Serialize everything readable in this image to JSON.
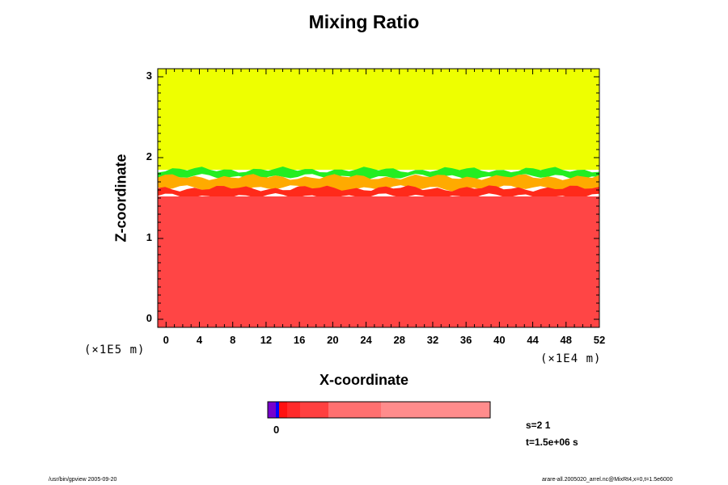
{
  "chart_data": {
    "type": "heatmap",
    "title": "Mixing Ratio",
    "xlabel": "X-coordinate",
    "ylabel": "Z-coordinate",
    "x_unit": "(×1E4 m)",
    "y_unit": "(×1E5 m)",
    "xlim": [
      -1,
      52
    ],
    "ylim": [
      -0.1,
      3.1
    ],
    "x_ticks": [
      "0",
      "4",
      "8",
      "12",
      "16",
      "20",
      "24",
      "28",
      "32",
      "36",
      "40",
      "44",
      "48",
      "52"
    ],
    "y_ticks": [
      "0",
      "1",
      "2",
      "3"
    ],
    "grid": false,
    "regions": [
      {
        "name": "upper",
        "z_from": 1.85,
        "z_to": 3.1,
        "color": "#eeff00"
      },
      {
        "name": "transition-green",
        "z_from": 1.76,
        "z_to": 1.85,
        "color": "#22ee22"
      },
      {
        "name": "transition-orange",
        "z_from": 1.62,
        "z_to": 1.76,
        "color": "#ffaa00"
      },
      {
        "name": "transition-red",
        "z_from": 1.52,
        "z_to": 1.62,
        "color": "#ff2a1a"
      },
      {
        "name": "lower",
        "z_from": -0.1,
        "z_to": 1.52,
        "color": "#ff4545"
      }
    ],
    "colorbar": {
      "label": "0",
      "segments": [
        {
          "color": "#7700cc",
          "weight": 1
        },
        {
          "color": "#0000ff",
          "weight": 0.4
        },
        {
          "color": "#ff1111",
          "weight": 1
        },
        {
          "color": "#ff2a2a",
          "weight": 1.6
        },
        {
          "color": "#ff4040",
          "weight": 3.5
        },
        {
          "color": "#ff7070",
          "weight": 6.5
        },
        {
          "color": "#ff8c8c",
          "weight": 13.5
        }
      ]
    }
  },
  "info": {
    "step": "s=2 1",
    "time": "t=1.5e+06 s"
  },
  "footer": {
    "left": "/usr/bin/gpview 2005-09-20",
    "right": "arare-all.2005020_arrel.nc@MixRt4,x=0,t=1.5e6000"
  }
}
